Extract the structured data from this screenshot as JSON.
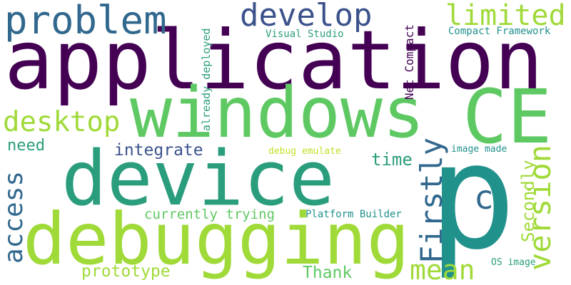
{
  "colors": {
    "background": "#ffffff",
    "dark_purple": "#440154",
    "indigo": "#3b528b",
    "slate_blue": "#31688e",
    "teal": "#21918c",
    "jade": "#2a9d7c",
    "green": "#5ec962",
    "lime": "#a0da39",
    "yellow_green": "#c2df23"
  },
  "words": {
    "application": "application",
    "p": "p",
    "windows": "windows",
    "ce": "CE",
    "device": "device",
    "debugging": "debugging",
    "problem": "problem",
    "develop": "develop",
    "limited": "limited",
    "desktop": "desktop",
    "firstly": "Firstly",
    "version": "version",
    "access": "access",
    "mean": "mean",
    "c": "c",
    "integrate": "integrate",
    "secondly": "Secondly",
    "need": "need",
    "time": "time",
    "currently_trying": "currently trying",
    "prototype": "prototype",
    "thank": "Thank",
    "visual_studio": "Visual Studio",
    "net_compact": "Net Compact",
    "compact_framework": "Compact Framework",
    "already_deployed": "already deployed",
    "debug_emulate": "debug emulate",
    "image_made": "image made",
    "platform_builder": "Platform Builder",
    "os_image": "OS image"
  }
}
